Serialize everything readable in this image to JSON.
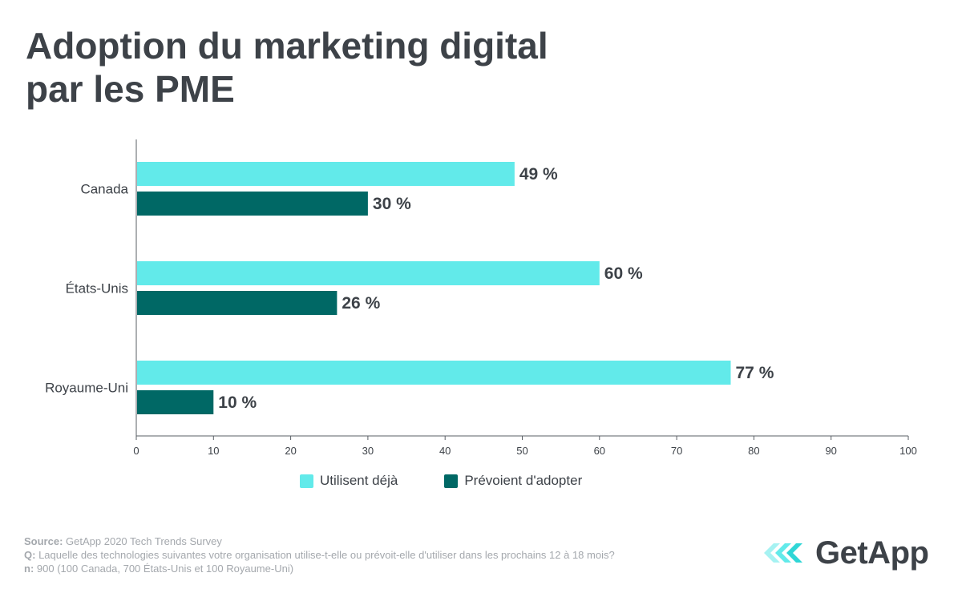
{
  "title_lines": [
    "Adoption du marketing digital",
    "par les PME"
  ],
  "chart_data": {
    "type": "bar",
    "orientation": "horizontal",
    "categories": [
      "Canada",
      "États-Unis",
      "Royaume-Uni"
    ],
    "series": [
      {
        "name": "Utilisent déjà",
        "values": [
          49,
          60,
          77
        ],
        "labels": [
          "49 %",
          "60 %",
          "77 %"
        ],
        "color": "#62eaea"
      },
      {
        "name": "Prévoient d'adopter",
        "values": [
          30,
          26,
          10
        ],
        "labels": [
          "30 %",
          "26 %",
          "10 %"
        ],
        "color": "#006865"
      }
    ],
    "xlim": [
      0,
      100
    ],
    "xticks": [
      "0",
      "10",
      "20",
      "30",
      "40",
      "50",
      "60",
      "70",
      "80",
      "90",
      "100"
    ],
    "legend_position": "bottom",
    "grid": false
  },
  "legend": {
    "items": [
      {
        "label": "Utilisent déjà",
        "color": "#62eaea"
      },
      {
        "label": "Prévoient d'adopter",
        "color": "#006865"
      }
    ]
  },
  "footer": {
    "source_label": "Source:",
    "source_text": "GetApp 2020 Tech Trends Survey",
    "q_label": "Q:",
    "q_text": "Laquelle des technologies suivantes votre organisation utilise-t-elle ou prévoit-elle d'utiliser dans les prochains 12 à 18 mois?",
    "n_label": "n:",
    "n_text": "900 (100 Canada, 700 États-Unis et 100 Royaume-Uni)"
  },
  "logo": {
    "text": "GetApp",
    "accent_color": "#62eaea"
  }
}
